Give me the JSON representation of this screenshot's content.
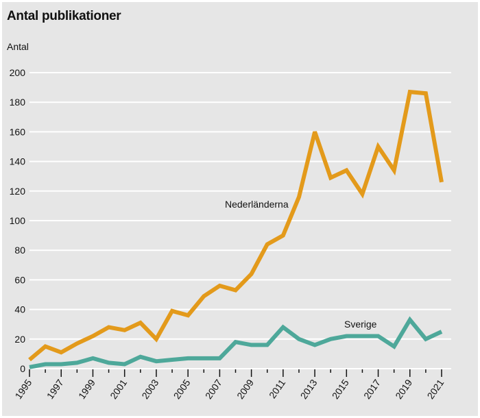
{
  "chart_data": {
    "type": "line",
    "title": "Antal publikationer",
    "xlabel": "",
    "ylabel": "Antal",
    "ylim": [
      0,
      200
    ],
    "yticks": [
      0,
      20,
      40,
      60,
      80,
      100,
      120,
      140,
      160,
      180,
      200
    ],
    "x": [
      1995,
      1996,
      1997,
      1998,
      1999,
      2000,
      2001,
      2002,
      2003,
      2004,
      2005,
      2006,
      2007,
      2008,
      2009,
      2010,
      2011,
      2012,
      2013,
      2014,
      2015,
      2016,
      2017,
      2018,
      2019,
      2020,
      2021
    ],
    "xtick_labels": [
      "1995",
      "1997",
      "1999",
      "2001",
      "2003",
      "2005",
      "2007",
      "2009",
      "2011",
      "2013",
      "2015",
      "2017",
      "2019",
      "2021"
    ],
    "grid": true,
    "series": [
      {
        "name": "Nederländerna",
        "color": "#e39a1b",
        "values": [
          6,
          15,
          11,
          17,
          22,
          28,
          26,
          31,
          20,
          39,
          36,
          49,
          56,
          53,
          64,
          84,
          90,
          116,
          160,
          129,
          134,
          118,
          150,
          134,
          187,
          186,
          126
        ]
      },
      {
        "name": "Sverige",
        "color": "#4ea89a",
        "values": [
          1,
          3,
          3,
          4,
          7,
          4,
          3,
          8,
          5,
          6,
          7,
          7,
          7,
          18,
          16,
          16,
          28,
          20,
          16,
          20,
          22,
          22,
          22,
          15,
          33,
          20,
          25
        ]
      }
    ]
  }
}
